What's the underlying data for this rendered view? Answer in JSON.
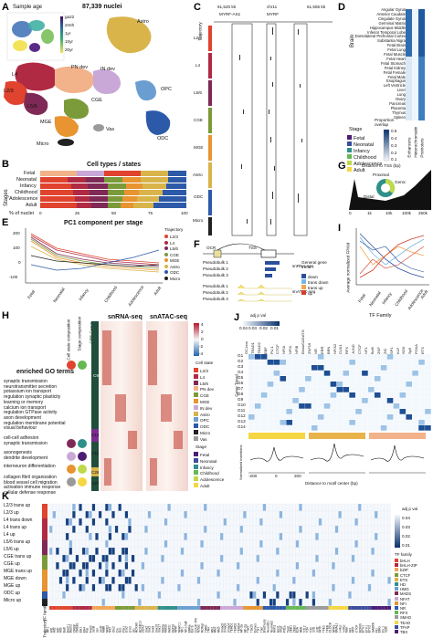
{
  "panel_letters": [
    "A",
    "B",
    "C",
    "D",
    "E",
    "F",
    "G",
    "H",
    "I",
    "J",
    "K"
  ],
  "panel_a": {
    "nuclei_count": "87,339 nuclei",
    "sample_age_title": "Sample age",
    "age_ticks": [
      "ga22",
      "2mth",
      "1yr",
      "10yr",
      "20yr"
    ],
    "cluster_labels": [
      "Astro",
      "L4",
      "L2/3",
      "L5/6",
      "PN dev",
      "IN dev",
      "CGE",
      "MGE",
      "OPC",
      "ODC",
      "Vas",
      "Micro"
    ]
  },
  "panel_b": {
    "title": "Cell types / states",
    "ylabel": "Stages",
    "xlabel": "% of nuclei",
    "xticks": [
      "0",
      "25",
      "50",
      "75",
      "100"
    ],
    "stages": [
      "Fetal",
      "Neonatal",
      "Infancy",
      "Childhood",
      "Adolescence",
      "Adult"
    ]
  },
  "panel_c": {
    "chr": "chr11",
    "coord_left": "61,520 kb",
    "coord_right": "61,555 kb",
    "gene_left": "MYRF-AS1",
    "gene_right": "MYRF",
    "track_groups": [
      "L2/3",
      "L4",
      "L5/6",
      "CGE",
      "MGE",
      "Astro",
      "ODC",
      "Micro"
    ],
    "trajectory_label": "Trajectory",
    "legend_title": "Stage",
    "legend_items": [
      "Fetal",
      "Neonatal",
      "Infancy",
      "Childhood",
      "Adolescence",
      "Adult"
    ]
  },
  "panel_d": {
    "ylabel": "Brain",
    "tissues_brain": [
      "Angular Gyrus",
      "Anterior Caudate",
      "Cingulate Gyrus",
      "Germinal Matrix",
      "Hippocampus Middle",
      "Inferior Temporal Lobe",
      "Dorsolateral Prefrontal Cortex",
      "Substantia Nigra",
      "Fetal Brain"
    ],
    "tissues_other": [
      "Fetal Lung",
      "Fetal Muscle",
      "Fetal Heart",
      "Fetal Stomach",
      "Fetal Kidney",
      "Fetal Female",
      "Fetal Male",
      "Esophagus",
      "Left Ventricle",
      "Liver",
      "Lung",
      "Ovary",
      "Pancreas",
      "Placenta",
      "Thymus",
      "Spleen"
    ],
    "legend_title": "Proportion overlap",
    "legend_ticks": [
      "0.5",
      "0.4",
      "0.3",
      "0.2",
      "0.1"
    ],
    "col_labels": [
      "Enhancers",
      "Heterochromatin",
      "Promoters"
    ]
  },
  "panel_e": {
    "title": "PC1 component per stage",
    "yticks": [
      "200",
      "100",
      "0",
      "-100"
    ],
    "xticks": [
      "Fetal",
      "Neonatal",
      "Infancy",
      "Childhood",
      "Adolescence",
      "Adult"
    ],
    "legend_title": "Trajectory",
    "legend_items": [
      "L2/3",
      "L4",
      "L5/6",
      "CGE",
      "MGE",
      "Astro",
      "ODC",
      "Micro"
    ]
  },
  "panel_f": {
    "ocr_label": "OCR",
    "tss_label": "TSS",
    "rows_rna": [
      "Pseudobulk 1",
      "Pseudobulk 2",
      "Pseudobulk 3"
    ],
    "rows_atac": [
      "Pseudobulk 1",
      "Pseudobulk 2",
      "Pseudobulk 3"
    ],
    "rna_label": "snRNA-seq",
    "atac_label": "snATAC-seq"
  },
  "panel_g": {
    "title": "Distance to TSS (bp)",
    "labels": [
      "Proximal",
      "Genic",
      "Distal"
    ],
    "xticks": [
      "0",
      "1k",
      "10k",
      "100k",
      "250k"
    ]
  },
  "panel_i": {
    "legend_title": "General gene trend",
    "legend_items": [
      "down",
      "trans down",
      "trans up",
      "up"
    ],
    "ylabel": "Average normalized FPKM",
    "xticks": [
      "Fetal",
      "Neonatal",
      "Infancy",
      "Childhood",
      "Adolescence",
      "Adult"
    ]
  },
  "panel_h": {
    "title_go": "enriched GO terms",
    "col_headers": [
      "Cell state composition",
      "Stage composition",
      "CRE Group"
    ],
    "rna_label": "snRNA-seq",
    "atac_label": "snATAC-seq",
    "scale_ticks": [
      "4",
      "2",
      "0",
      "-2",
      "-4"
    ],
    "groups": [
      "C9",
      "C11",
      "C14",
      "C26",
      "C27"
    ],
    "go_terms_c9": [
      "synaptic transmission",
      "neurotransmitter secretion",
      "potassium ion transport",
      "regulation synaptic plasticity",
      "learning or memory",
      "calcium ion transport",
      "regulation GTPase activity",
      "axon development",
      "regulation membrane potential",
      "visual behaviour"
    ],
    "go_terms_c11": [
      "cell-cell adhesion",
      "synaptic transmission"
    ],
    "go_terms_c14": [
      "axonogenesis",
      "dendrite development"
    ],
    "go_terms_c26": [
      "interneuron differentiation"
    ],
    "go_terms_c27": [
      "collagen fibril organization",
      "blood vessel cell migration",
      "activation immune response",
      "cellular defense response"
    ],
    "legend_state_title": "Cell state",
    "legend_state": [
      "L2/3",
      "L4",
      "L5/6",
      "PN dev",
      "CGE",
      "MGE",
      "IN dev",
      "Astro",
      "OPC",
      "ODC",
      "Micro",
      "Vas"
    ],
    "legend_stage_title": "Stage",
    "legend_stage": [
      "Fetal",
      "Neonatal",
      "Infancy",
      "Childhood",
      "Adolescence",
      "Adult"
    ]
  },
  "panel_j": {
    "scale_title": "adj p val",
    "scale_ticks": [
      "0.04",
      "0.03",
      "0.02",
      "0.01"
    ],
    "tf_family_title": "TF Family",
    "col_labels": [
      "GC-box",
      "TEAD1",
      "TEAD2",
      "EBF",
      "PU.1",
      "CTCF",
      "NFIA",
      "NFIX",
      "NFIB",
      "Ebox/CAGATG",
      "ZNF16",
      "NR",
      "ERR",
      "BRN",
      "NFIX2",
      "CUX1",
      "RFX",
      "JUND",
      "CTCF",
      "NF1",
      "Bcl6",
      "ZNF",
      "ZIC",
      "SP1",
      "KLF",
      "SOX",
      "Sp5",
      "FOXA",
      "ETS"
    ],
    "row_label": "Gene Trend",
    "rows": [
      "G1",
      "G2",
      "G3",
      "G4",
      "G5",
      "G6",
      "G7",
      "G8",
      "G9",
      "G10",
      "G11",
      "G12",
      "G13",
      "G14"
    ],
    "motif_titles": [
      "STAT3",
      "POU3F1",
      "TEF"
    ],
    "motif_xticks": [
      "-200",
      "0",
      "200"
    ],
    "motif_ylabel": "Normalized insertions",
    "motif_xlabel": "Distance to motif center (bp)"
  },
  "panel_k": {
    "scale_title": "adj p val",
    "scale_ticks": [
      "0.04",
      "0.03",
      "0.02",
      "0.01"
    ],
    "rows": [
      "L2/3 trans up",
      "L2/3 up",
      "L4 trans down",
      "L4 trans up",
      "L4 up",
      "L5/6 trans up",
      "L5/6 up",
      "CGE trans up",
      "CGE up",
      "MGE trans up",
      "MGE down",
      "MGE up",
      "ODC up",
      "Micro up"
    ],
    "trajectory_label": "Trajectory",
    "tf_family_label": "TF family",
    "families": [
      "bHLH",
      "bHLH-ZIP",
      "bZIP",
      "CTCF",
      "ETS",
      "HD",
      "HMG",
      "MADS",
      "NFAT",
      "NFI",
      "NR",
      "RFX",
      "SMAD",
      "TEAD",
      "TFAP",
      "TBX"
    ],
    "col_labels": [
      "AP1",
      "Atf1",
      "Atf2",
      "Atf7",
      "Atf3",
      "Batf",
      "Bach1",
      "Bach2",
      "CREB",
      "CREB1",
      "Elk1",
      "Elk4",
      "Fos",
      "Fosl2",
      "JunB",
      "Jun",
      "JunD",
      "MafK",
      "NFE2",
      "Nrf2",
      "Otx2",
      "Crx",
      "Gsc",
      "Pitx1",
      "Lhx2",
      "Lhx3",
      "Isl1",
      "HOXA9",
      "HOXB13",
      "CDX2",
      "Sox2",
      "Sox3",
      "Sox9",
      "Sox10",
      "Sox17",
      "Mef2a",
      "Mef2b",
      "Mef2c",
      "Mef2d",
      "NFAT",
      "NFATc1",
      "NF1",
      "NF1-half",
      "ERRa",
      "Esrrb",
      "COUP-TFII",
      "Nr5a2",
      "RORgt",
      "THRb",
      "TR4",
      "Rfx1",
      "Rfx2",
      "Rfx5",
      "Smad2",
      "Smad3",
      "Smad4",
      "TEAD1",
      "TEAD2",
      "TEAD4",
      "AP-2a",
      "AP-2g",
      "Tbx5",
      "Tbx20",
      "Eomes",
      "Tbr1",
      "Tbet",
      "Brachyury",
      "NeuroD1",
      "NeuroG2",
      "Atoh1",
      "Ascl1",
      "Olig2",
      "Ptf1a",
      "Twist",
      "ZEB1",
      "ZEB2",
      "E2A",
      "HEB",
      "Tcf12",
      "Tcf4",
      "Tcf3",
      "Usf1",
      "Usf2",
      "MITF",
      "TFE3",
      "TFEB",
      "CLOCK",
      "NPAS",
      "BMAL1",
      "c-Myc",
      "n-Myc",
      "Max",
      "Mnt",
      "MNT",
      "CTCF",
      "BORIS",
      "ETS1",
      "ETV1",
      "ETV2",
      "GABPA",
      "Fli1",
      "ERG",
      "PU.1",
      "SpiB"
    ]
  },
  "colors": {
    "Astro": "#d9b44a",
    "L4": "#b12a44",
    "L2/3": "#e0432e",
    "L5/6": "#7f2a56",
    "PN dev": "#f2b28a",
    "IN dev": "#c9a8d7",
    "CGE": "#7b9b3a",
    "MGE": "#e79431",
    "OPC": "#6b9ed0",
    "ODC": "#2d5aa8",
    "Vas": "#9a9a9a",
    "Micro": "#222222",
    "Fetal": "#4b1d74",
    "Neonatal": "#3c4d9b",
    "Infancy": "#2f8f8b",
    "Childhood": "#65b854",
    "Adolescence": "#bfd94a",
    "Adult": "#f4d742",
    "trend_down": "#2a4f9c",
    "trend_trans_down": "#7ab6e5",
    "trend_trans_up": "#f2a455",
    "trend_up": "#d2402d",
    "heat_blue_dark": "#08306b",
    "heat_blue_light": "#f3f8fd",
    "heat_red": "#c0392b"
  }
}
